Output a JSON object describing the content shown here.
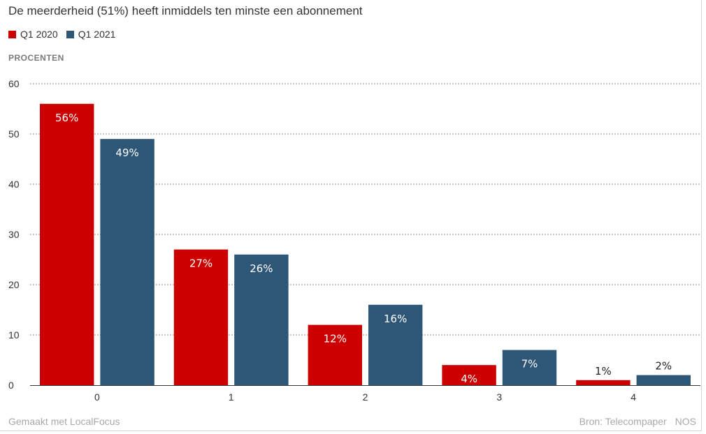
{
  "title": "De meerderheid (51%) heeft inmiddels ten minste een abonnement",
  "legend": [
    {
      "label": "Q1 2020",
      "color": "#cc0000"
    },
    {
      "label": "Q1 2021",
      "color": "#2e5676"
    }
  ],
  "unit_label": "PROCENTEN",
  "footer": {
    "made_with": "Gemaakt met LocalFocus",
    "source": "Bron: Telecompaper",
    "brand": "NOS"
  },
  "chart_data": {
    "type": "bar",
    "title": "De meerderheid (51%) heeft inmiddels ten minste een abonnement",
    "xlabel": "",
    "ylabel": "PROCENTEN",
    "categories": [
      "0",
      "1",
      "2",
      "3",
      "4"
    ],
    "series": [
      {
        "name": "Q1 2020",
        "color": "#cc0000",
        "values": [
          56,
          27,
          12,
          4,
          1
        ],
        "labels": [
          "56%",
          "27%",
          "12%",
          "4%",
          "1%"
        ]
      },
      {
        "name": "Q1 2021",
        "color": "#2e5676",
        "values": [
          49,
          26,
          16,
          7,
          2
        ],
        "labels": [
          "49%",
          "26%",
          "16%",
          "7%",
          "2%"
        ]
      }
    ],
    "ylim": [
      0,
      60
    ],
    "yticks": [
      0,
      10,
      20,
      30,
      40,
      50,
      60
    ],
    "grid": true,
    "legend_position": "top-left"
  }
}
